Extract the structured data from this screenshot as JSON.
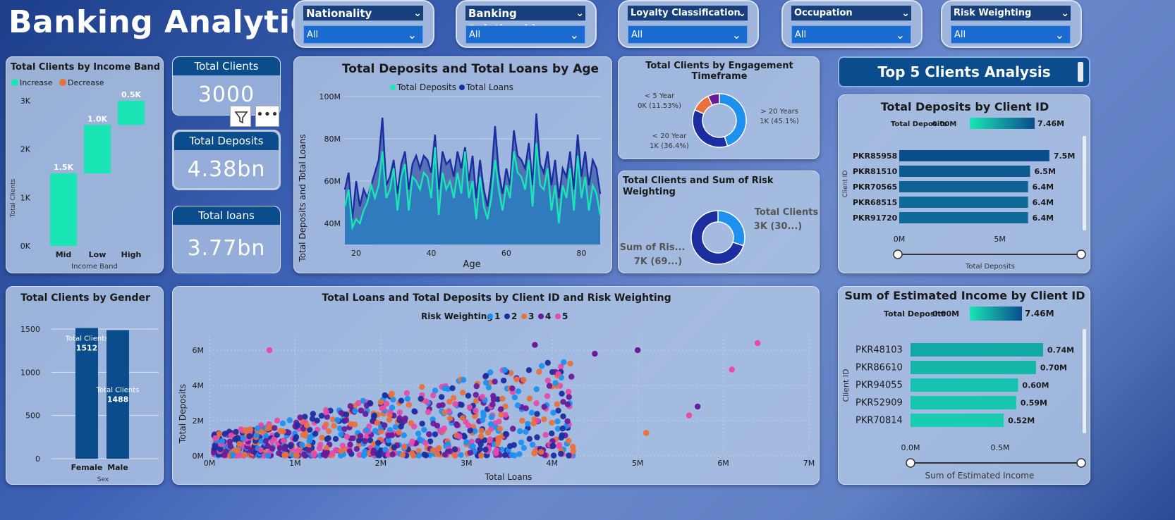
{
  "header": {
    "title": "Banking Analytics"
  },
  "slicers": [
    {
      "label": "Nationality",
      "value": "All"
    },
    {
      "label": "Banking Relationship",
      "value": "All"
    },
    {
      "label": "Loyalty Classification",
      "value": "All"
    },
    {
      "label": "Occupation",
      "value": "All"
    },
    {
      "label": "Risk Weighting",
      "value": "All"
    }
  ],
  "kpis": {
    "total_clients": {
      "label": "Total Clients",
      "value": "3000"
    },
    "total_deposits": {
      "label": "Total Deposits",
      "value": "4.38bn"
    },
    "total_loans": {
      "label": "Total loans",
      "value": "3.77bn"
    }
  },
  "top5_button": "Top 5 Clients Analysis",
  "chart_data": [
    {
      "id": "income_band",
      "type": "bar",
      "title": "Total Clients by Income Band",
      "legend": [
        "Increase",
        "Decrease"
      ],
      "categories": [
        "Mid",
        "Low",
        "High"
      ],
      "values": [
        1500,
        1000,
        500
      ],
      "data_labels": [
        "1.5K",
        "1.0K",
        "0.5K"
      ],
      "ylabel": "Total Clients",
      "xlabel": "Income Band",
      "yticks": [
        "0K",
        "1K",
        "2K",
        "3K"
      ],
      "ylim": [
        0,
        3000
      ],
      "colors": {
        "increase": "#19e5b5",
        "decrease": "#e8713c"
      }
    },
    {
      "id": "gender",
      "type": "bar",
      "title": "Total Clients by Gender",
      "categories": [
        "Female",
        "Male"
      ],
      "values": [
        1512,
        1488
      ],
      "data_label_name": "Total Clients",
      "xlabel": "Sex",
      "yticks": [
        "0",
        "500",
        "1000",
        "1500"
      ],
      "ylim": [
        0,
        1500
      ],
      "color": "#0b4c8c"
    },
    {
      "id": "age",
      "type": "area",
      "title": "Total Deposits and Total Loans by Age",
      "legend": [
        "Total Deposits",
        "Total Loans"
      ],
      "xlabel": "Age",
      "ylabel": "Total Deposits and Total Loans",
      "xticks": [
        "20",
        "40",
        "60",
        "80"
      ],
      "yticks": [
        "40M",
        "60M",
        "80M",
        "100M"
      ],
      "xlim": [
        17,
        85
      ],
      "ylim": [
        30,
        100
      ],
      "x": [
        17,
        18,
        19,
        20,
        21,
        22,
        23,
        24,
        25,
        26,
        27,
        28,
        29,
        30,
        31,
        32,
        33,
        34,
        35,
        36,
        37,
        38,
        39,
        40,
        41,
        42,
        43,
        44,
        45,
        46,
        47,
        48,
        49,
        50,
        51,
        52,
        53,
        54,
        55,
        56,
        57,
        58,
        59,
        60,
        61,
        62,
        63,
        64,
        65,
        66,
        67,
        68,
        69,
        70,
        71,
        72,
        73,
        74,
        75,
        76,
        77,
        78,
        79,
        80,
        81,
        82,
        83,
        84,
        85
      ],
      "loans": [
        56,
        64,
        42,
        60,
        48,
        56,
        52,
        58,
        64,
        70,
        90,
        58,
        62,
        70,
        54,
        68,
        74,
        56,
        68,
        72,
        66,
        72,
        70,
        64,
        82,
        56,
        74,
        68,
        70,
        62,
        74,
        66,
        76,
        60,
        72,
        52,
        70,
        56,
        48,
        62,
        86,
        64,
        54,
        66,
        58,
        84,
        72,
        70,
        66,
        78,
        58,
        92,
        68,
        64,
        74,
        58,
        70,
        52,
        66,
        62,
        74,
        56,
        82,
        62,
        74,
        58,
        70,
        66,
        54
      ],
      "deposits": [
        48,
        56,
        38,
        42,
        40,
        46,
        50,
        58,
        52,
        58,
        74,
        52,
        56,
        66,
        46,
        62,
        68,
        46,
        62,
        60,
        56,
        64,
        62,
        52,
        76,
        44,
        64,
        56,
        60,
        52,
        64,
        54,
        74,
        52,
        60,
        42,
        62,
        48,
        42,
        52,
        70,
        56,
        46,
        58,
        52,
        74,
        64,
        62,
        56,
        70,
        48,
        78,
        58,
        56,
        66,
        46,
        58,
        40,
        58,
        52,
        66,
        46,
        72,
        52,
        62,
        46,
        58,
        54,
        44
      ],
      "colors": {
        "deposits": "#19e5b5",
        "loans": "#1a2ea0",
        "area": "#2a6db8"
      }
    },
    {
      "id": "engagement",
      "type": "pie",
      "title": "Total Clients by Engagement Timeframe",
      "slices": [
        {
          "name": "> 20 Years",
          "label": "1K (45.1%)",
          "value": 45.1,
          "color": "#1e90f0"
        },
        {
          "name": "< 20 Year",
          "label": "1K (36.4%)",
          "value": 36.4,
          "color": "#1a2ea0"
        },
        {
          "name": "< 5 Year",
          "label": "0K (11.53%)",
          "value": 11.53,
          "color": "#e8713c"
        },
        {
          "name": "",
          "label": "",
          "value": 6.97,
          "color": "#6a1b9a"
        }
      ]
    },
    {
      "id": "risk_sum",
      "type": "pie",
      "title": "Total Clients and Sum of Risk Weighting",
      "slices": [
        {
          "name": "Total Clients",
          "label": "3K (30...)",
          "value": 30,
          "color": "#1e90f0"
        },
        {
          "name": "Sum of Ris...",
          "label": "7K (69...)",
          "value": 70,
          "color": "#1a2ea0"
        }
      ]
    },
    {
      "id": "deposits_by_client",
      "type": "bar",
      "title": "Total Deposits by Client ID",
      "legend_label": "Total Deposits",
      "legend_min": "0.00M",
      "legend_max": "7.46M",
      "ylabel": "Client ID",
      "xlabel": "Total Deposits",
      "xticks": [
        "0M",
        "5M"
      ],
      "xlim": [
        0,
        7.5
      ],
      "categories": [
        "PKR85958",
        "PKR81510",
        "PKR70565",
        "PKR68515",
        "PKR91720"
      ],
      "values": [
        7.46,
        6.5,
        6.4,
        6.4,
        6.4
      ],
      "data_labels": [
        "7.5M",
        "6.5M",
        "6.4M",
        "6.4M",
        "6.4M"
      ]
    },
    {
      "id": "income_by_client",
      "type": "bar",
      "title": "Sum of Estimated Income by Client ID",
      "legend_label": "Total Deposits",
      "legend_min": "0.00M",
      "legend_max": "7.46M",
      "ylabel": "Client ID",
      "xlabel": "Sum of Estimated Income",
      "xticks": [
        "0.0M",
        "0.5M"
      ],
      "xlim": [
        0,
        0.74
      ],
      "categories": [
        "PKR48103",
        "PKR86610",
        "PKR94055",
        "PKR52909",
        "PKR70814"
      ],
      "values": [
        0.74,
        0.7,
        0.6,
        0.59,
        0.52
      ],
      "data_labels": [
        "0.74M",
        "0.70M",
        "0.60M",
        "0.59M",
        "0.52M"
      ]
    },
    {
      "id": "scatter",
      "type": "scatter",
      "title": "Total Loans and Total Deposits by Client ID and Risk Weighting",
      "legend_title": "Risk Weighting",
      "legend": [
        "1",
        "2",
        "3",
        "4",
        "5"
      ],
      "colors": [
        "#1e90f0",
        "#1a2ea0",
        "#e8713c",
        "#6a1b9a",
        "#e84aa8"
      ],
      "xlabel": "Total Loans",
      "ylabel": "Total Deposits",
      "xticks": [
        "0M",
        "1M",
        "2M",
        "3M",
        "4M",
        "5M",
        "6M",
        "7M"
      ],
      "yticks": [
        "0M",
        "2M",
        "4M",
        "6M"
      ],
      "xlim": [
        0,
        7
      ],
      "ylim": [
        0,
        6.8
      ],
      "outliers": [
        [
          6.1,
          4.9,
          5
        ],
        [
          5.7,
          2.8,
          4
        ],
        [
          5.6,
          2.3,
          5
        ],
        [
          5.1,
          1.3,
          3
        ],
        [
          5.0,
          6.0,
          4
        ],
        [
          4.5,
          5.8,
          4
        ],
        [
          3.8,
          6.3,
          4
        ],
        [
          0.7,
          6.0,
          5
        ],
        [
          6.4,
          6.4,
          5
        ]
      ]
    }
  ]
}
